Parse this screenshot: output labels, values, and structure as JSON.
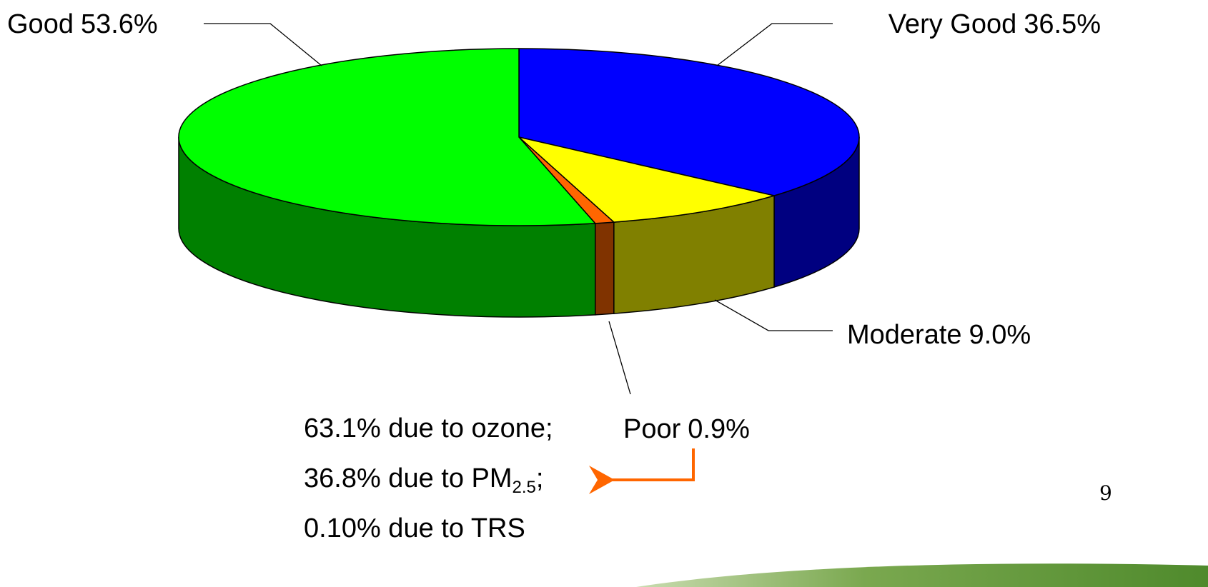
{
  "chart_data": {
    "type": "pie3d",
    "categories": [
      "Very Good",
      "Moderate",
      "Poor",
      "Good"
    ],
    "values": [
      36.5,
      9.0,
      0.9,
      53.6
    ],
    "value_labels": [
      "36.5%",
      "9.0%",
      "0.9%",
      "53.6%"
    ],
    "colors": [
      "#0000ff",
      "#ffff00",
      "#ff6600",
      "#00ff00"
    ],
    "side_colors": [
      "#000080",
      "#808000",
      "#803300",
      "#008000"
    ],
    "annotations": [
      {
        "text": "63.1% due to ozone;"
      },
      {
        "text": "36.8% due to PM",
        "sub": "2.5",
        "tail": ";"
      },
      {
        "text": "0.10% due to TRS"
      }
    ]
  },
  "page_number": "9"
}
